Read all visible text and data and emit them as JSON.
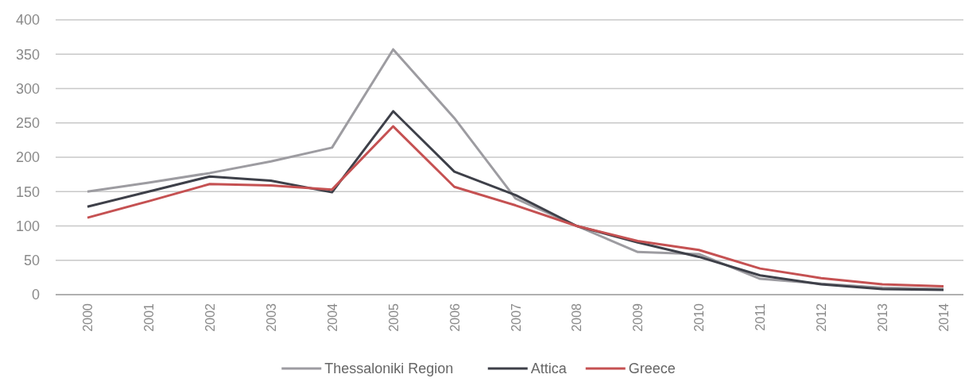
{
  "chart_data": {
    "type": "line",
    "categories": [
      "2000",
      "2001",
      "2002",
      "2003",
      "2004",
      "2005",
      "2006",
      "2007",
      "2008",
      "2009",
      "2010",
      "2011",
      "2012",
      "2013",
      "2014"
    ],
    "series": [
      {
        "name": "Thessaloniki Region",
        "color": "#9d9ca1",
        "values": [
          150,
          163,
          177,
          194,
          214,
          357,
          257,
          140,
          100,
          62,
          59,
          23,
          16,
          10,
          8
        ]
      },
      {
        "name": "Attica",
        "color": "#3e4049",
        "values": [
          128,
          150,
          172,
          166,
          149,
          267,
          179,
          145,
          100,
          76,
          55,
          28,
          15,
          8,
          7
        ]
      },
      {
        "name": "Greece",
        "color": "#c55152",
        "values": [
          112,
          136,
          161,
          159,
          153,
          245,
          157,
          130,
          100,
          78,
          65,
          38,
          24,
          15,
          12
        ]
      }
    ],
    "ylim": [
      0,
      400
    ],
    "yticks": [
      0,
      50,
      100,
      150,
      200,
      250,
      300,
      350,
      400
    ],
    "grid": "y",
    "legend": "bottom",
    "line_style": "solid",
    "marker": "none"
  }
}
